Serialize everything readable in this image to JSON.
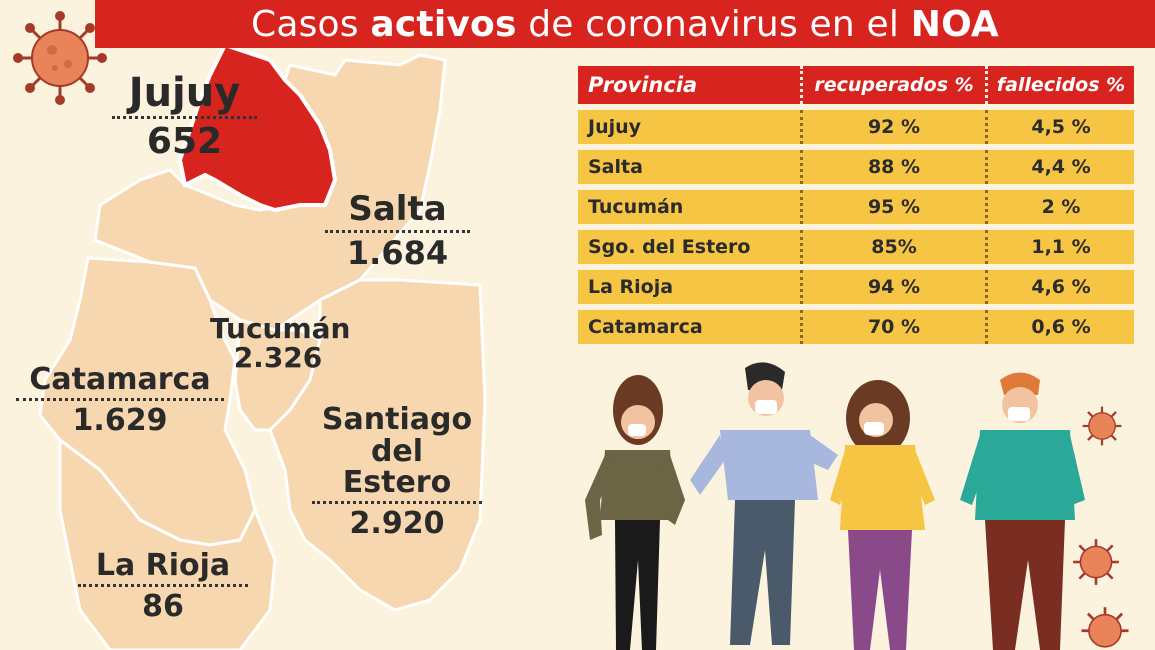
{
  "title": {
    "part1": "Casos ",
    "part2": "activos",
    "part3": " de coronavirus en el ",
    "part4": "NOA"
  },
  "map": {
    "provinces": [
      {
        "name": "Jujuy",
        "cases": "652"
      },
      {
        "name": "Salta",
        "cases": "1.684"
      },
      {
        "name": "Tucumán",
        "cases": "2.326"
      },
      {
        "name": "Catamarca",
        "cases": "1.629"
      },
      {
        "name": "Santiago del Estero",
        "name_line1": "Santiago",
        "name_line2": "del Estero",
        "cases": "2.920"
      },
      {
        "name": "La Rioja",
        "cases": "86"
      }
    ]
  },
  "table": {
    "headers": [
      "Provincia",
      "recuperados %",
      "fallecidos %"
    ],
    "rows": [
      [
        "Jujuy",
        "92 %",
        "4,5 %"
      ],
      [
        "Salta",
        "88 %",
        "4,4 %"
      ],
      [
        "Tucumán",
        "95 %",
        "2 %"
      ],
      [
        "Sgo. del Estero",
        "85%",
        "1,1 %"
      ],
      [
        "La Rioja",
        "94 %",
        "4,6 %"
      ],
      [
        "Catamarca",
        "70 %",
        "0,6 %"
      ]
    ]
  },
  "colors": {
    "accent_red": "#d8241f",
    "row_yellow": "#f6c544",
    "map_fill": "#f7d7b0",
    "background": "#fbf3dd"
  },
  "icons": [
    "coronavirus-icon"
  ]
}
